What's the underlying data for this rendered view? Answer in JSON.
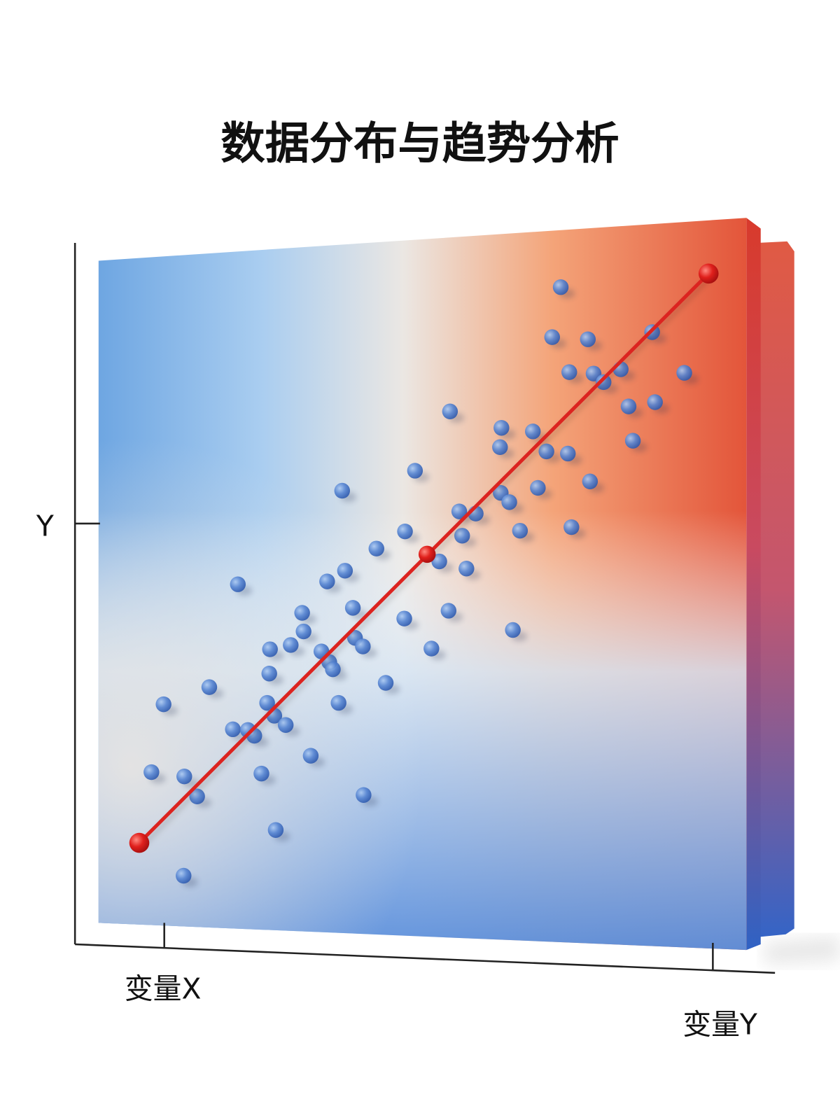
{
  "title": "数据分布与趋势分析",
  "axes": {
    "y_label": "Y",
    "x_label_left": "变量X",
    "x_label_right": "变量Y"
  }
}
